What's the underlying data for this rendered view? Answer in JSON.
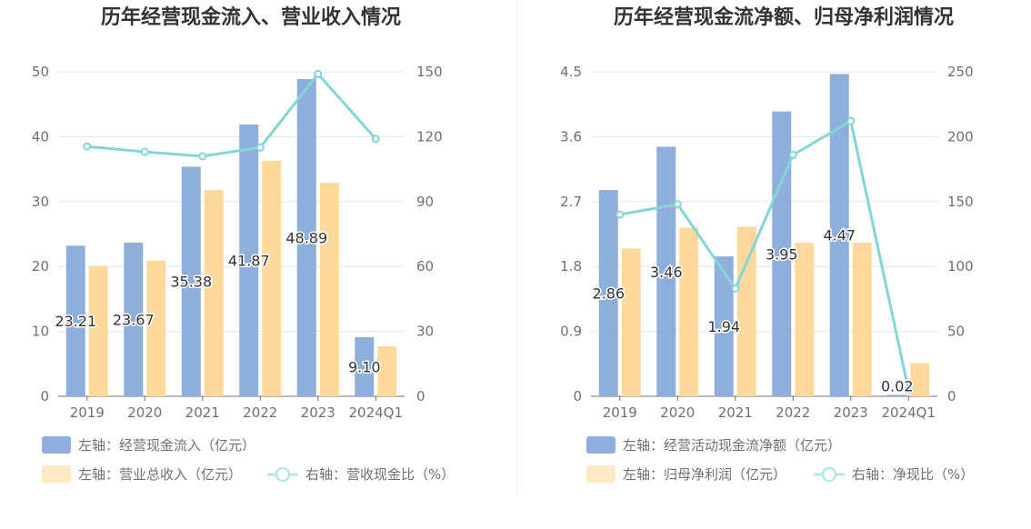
{
  "chart_data": [
    {
      "type": "bar",
      "title": "历年经营现金流入、营业收入情况",
      "categories": [
        "2019",
        "2020",
        "2021",
        "2022",
        "2023",
        "2024Q1"
      ],
      "left_axis": {
        "ticks": [
          "0",
          "10",
          "20",
          "30",
          "40",
          "50"
        ],
        "range": [
          0,
          50
        ]
      },
      "right_axis": {
        "ticks": [
          "0",
          "30",
          "60",
          "90",
          "120",
          "150"
        ],
        "range": [
          0,
          150
        ]
      },
      "series": [
        {
          "name": "左轴：经营现金流入（亿元）",
          "type": "bar",
          "axis": "left",
          "color": "#8eaedc",
          "values": [
            23.21,
            23.67,
            35.38,
            41.87,
            48.89,
            9.1
          ],
          "labels": [
            "23.21",
            "23.67",
            "35.38",
            "41.87",
            "48.89",
            "9.10"
          ]
        },
        {
          "name": "左轴：营业总收入（亿元）",
          "type": "bar",
          "axis": "left",
          "color": "#ffd99c",
          "values": [
            20.1,
            20.9,
            31.8,
            36.3,
            32.9,
            7.7
          ]
        },
        {
          "name": "右轴：营收现金比（%）",
          "type": "line",
          "axis": "right",
          "color": "#84d6d6",
          "values": [
            115.5,
            113.0,
            111.0,
            115.0,
            149.0,
            119.0
          ]
        }
      ]
    },
    {
      "type": "bar",
      "title": "历年经营现金流净额、归母净利润情况",
      "categories": [
        "2019",
        "2020",
        "2021",
        "2022",
        "2023",
        "2024Q1"
      ],
      "left_axis": {
        "ticks": [
          "0",
          "0.9",
          "1.8",
          "2.7",
          "3.6",
          "4.5"
        ],
        "range": [
          0,
          4.5
        ]
      },
      "right_axis": {
        "ticks": [
          "0",
          "50",
          "100",
          "150",
          "200",
          "250"
        ],
        "range": [
          0,
          250
        ]
      },
      "series": [
        {
          "name": "左轴：经营活动现金流净额（亿元）",
          "type": "bar",
          "axis": "left",
          "color": "#8eaedc",
          "values": [
            2.86,
            3.46,
            1.94,
            3.95,
            4.47,
            0.02
          ],
          "labels": [
            "2.86",
            "3.46",
            "1.94",
            "3.95",
            "4.47",
            "0.02"
          ]
        },
        {
          "name": "左轴：归母净利润（亿元）",
          "type": "bar",
          "axis": "left",
          "color": "#ffd99c",
          "values": [
            2.05,
            2.34,
            2.35,
            2.13,
            2.13,
            0.46
          ]
        },
        {
          "name": "右轴：净现比（%）",
          "type": "line",
          "axis": "right",
          "color": "#84d6d6",
          "values": [
            140,
            148,
            83,
            186,
            212,
            5
          ]
        }
      ]
    }
  ],
  "colors": {
    "grid": "#e0e6f1",
    "axis": "#6e7079",
    "divider": "#eeeeee"
  }
}
